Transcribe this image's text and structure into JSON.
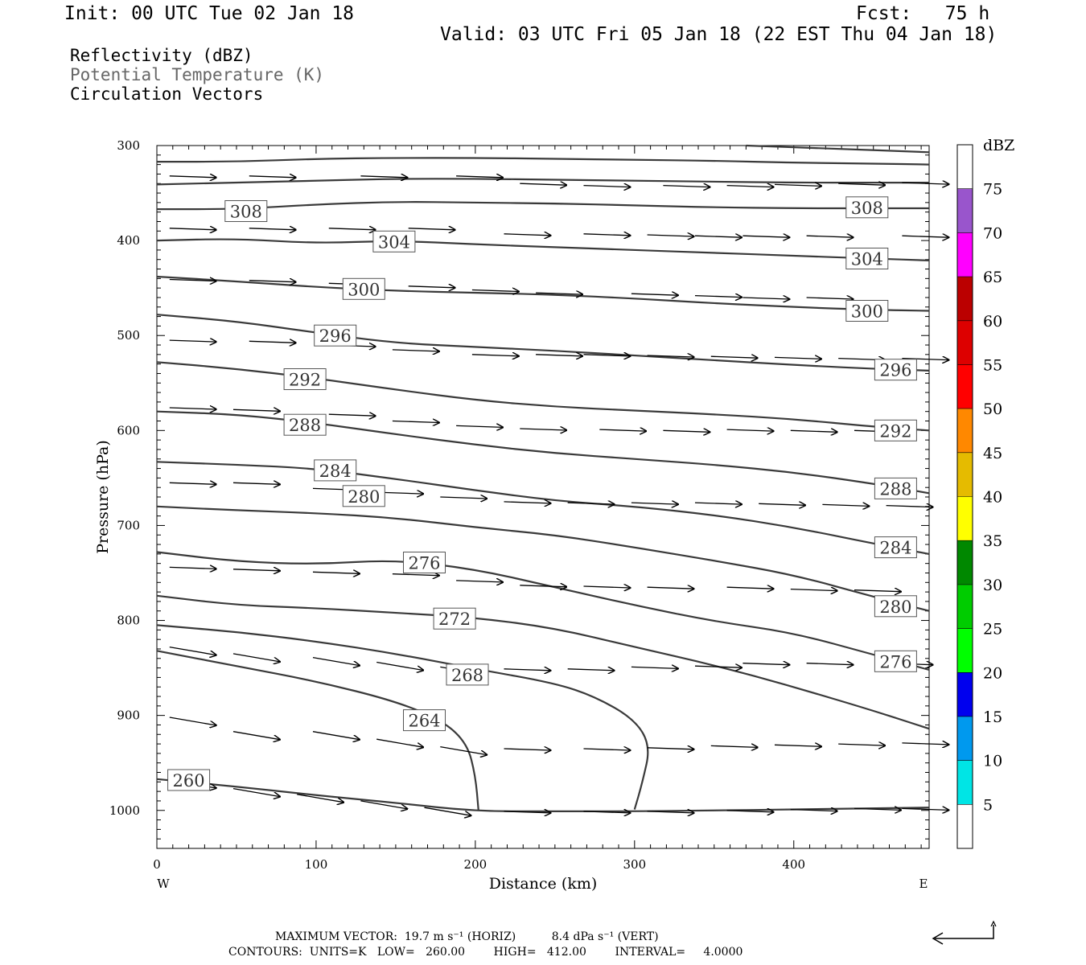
{
  "header": {
    "init": "Init: 00 UTC Tue 02 Jan 18",
    "fcst": "Fcst:   75 h",
    "valid": "Valid: 03 UTC Fri 05 Jan 18 (22 EST Thu 04 Jan 18)"
  },
  "legend": {
    "line1": "Reflectivity (dBZ)",
    "line2": "Potential Temperature (K)",
    "line3": "Circulation Vectors"
  },
  "footer": {
    "max_vector": "MAXIMUM VECTOR:  19.7 m s⁻¹ (HORIZ)          8.4 dPa s⁻¹ (VERT)",
    "contours": "CONTOURS:  UNITS=K   LOW=   260.00        HIGH=   412.00        INTERVAL=     4.0000"
  },
  "colors": {
    "contour": "#3a3a3a",
    "legend_secondary": "#666666"
  },
  "chart_data": {
    "type": "cross-section",
    "xlabel": "Distance (km)",
    "ylabel": "Pressure (hPa)",
    "xlim": [
      0,
      485
    ],
    "ylim": [
      1040,
      300
    ],
    "x_ticks": [
      0,
      100,
      200,
      300,
      400
    ],
    "y_ticks": [
      300,
      400,
      500,
      600,
      700,
      800,
      900,
      1000
    ],
    "x_end_labels": {
      "left": "W",
      "right": "E"
    },
    "colorbar": {
      "title": "dBZ",
      "levels": [
        5,
        10,
        15,
        20,
        25,
        30,
        35,
        40,
        45,
        50,
        55,
        60,
        65,
        70,
        75
      ],
      "colors": [
        "#ffffff",
        "#00e5e5",
        "#0099ee",
        "#0000ee",
        "#00ff00",
        "#00cc00",
        "#008800",
        "#ffff00",
        "#e5bb00",
        "#ff8800",
        "#ff0000",
        "#dd0000",
        "#bb0000",
        "#ff00ff",
        "#9955cc",
        "#ffffff"
      ]
    },
    "contours": [
      {
        "value": 260,
        "labels": [
          [
            20,
            968
          ]
        ],
        "points": [
          [
            0,
            967
          ],
          [
            50,
            975
          ],
          [
            100,
            984
          ],
          [
            150,
            992
          ],
          [
            200,
            1001
          ],
          [
            250,
            1001
          ],
          [
            300,
            1001
          ],
          [
            350,
            1000
          ],
          [
            400,
            999
          ],
          [
            485,
            997
          ]
        ]
      },
      {
        "value": 264,
        "labels": [
          [
            168,
            905
          ]
        ],
        "points": [
          [
            0,
            832
          ],
          [
            50,
            848
          ],
          [
            100,
            864
          ],
          [
            150,
            885
          ],
          [
            180,
            906
          ],
          [
            195,
            930
          ],
          [
            200,
            963
          ],
          [
            202,
            1000
          ]
        ]
      },
      {
        "value": 268,
        "labels": [
          [
            195,
            857
          ]
        ],
        "points": [
          [
            0,
            805
          ],
          [
            50,
            812
          ],
          [
            100,
            822
          ],
          [
            150,
            835
          ],
          [
            200,
            851
          ],
          [
            250,
            866
          ],
          [
            275,
            880
          ],
          [
            300,
            904
          ],
          [
            310,
            932
          ],
          [
            305,
            970
          ],
          [
            300,
            999
          ]
        ]
      },
      {
        "value": 272,
        "labels": [
          [
            187,
            798
          ]
        ],
        "points": [
          [
            0,
            774
          ],
          [
            50,
            784
          ],
          [
            100,
            787
          ],
          [
            150,
            792
          ],
          [
            200,
            797
          ],
          [
            250,
            808
          ],
          [
            300,
            828
          ],
          [
            350,
            847
          ],
          [
            400,
            870
          ],
          [
            450,
            895
          ],
          [
            485,
            914
          ]
        ]
      },
      {
        "value": 276,
        "labels": [
          [
            168,
            739
          ],
          [
            464,
            843
          ]
        ],
        "points": [
          [
            0,
            728
          ],
          [
            50,
            738
          ],
          [
            100,
            741
          ],
          [
            150,
            736
          ],
          [
            200,
            746
          ],
          [
            250,
            765
          ],
          [
            300,
            784
          ],
          [
            350,
            801
          ],
          [
            400,
            813
          ],
          [
            450,
            836
          ],
          [
            485,
            852
          ]
        ]
      },
      {
        "value": 280,
        "labels": [
          [
            130,
            669
          ],
          [
            464,
            785
          ]
        ],
        "points": [
          [
            0,
            680
          ],
          [
            50,
            684
          ],
          [
            100,
            687
          ],
          [
            150,
            692
          ],
          [
            200,
            702
          ],
          [
            250,
            710
          ],
          [
            300,
            723
          ],
          [
            350,
            737
          ],
          [
            400,
            752
          ],
          [
            450,
            775
          ],
          [
            485,
            790
          ]
        ]
      },
      {
        "value": 284,
        "labels": [
          [
            112,
            642
          ],
          [
            464,
            723
          ]
        ],
        "points": [
          [
            0,
            633
          ],
          [
            50,
            636
          ],
          [
            100,
            640
          ],
          [
            150,
            651
          ],
          [
            200,
            663
          ],
          [
            250,
            674
          ],
          [
            300,
            680
          ],
          [
            350,
            689
          ],
          [
            400,
            702
          ],
          [
            450,
            719
          ],
          [
            485,
            730
          ]
        ]
      },
      {
        "value": 288,
        "labels": [
          [
            93,
            594
          ],
          [
            464,
            661
          ]
        ],
        "points": [
          [
            0,
            580
          ],
          [
            50,
            583
          ],
          [
            100,
            592
          ],
          [
            150,
            604
          ],
          [
            200,
            615
          ],
          [
            250,
            624
          ],
          [
            300,
            630
          ],
          [
            350,
            636
          ],
          [
            400,
            644
          ],
          [
            450,
            656
          ],
          [
            485,
            666
          ]
        ]
      },
      {
        "value": 292,
        "labels": [
          [
            93,
            546
          ],
          [
            464,
            600
          ]
        ],
        "points": [
          [
            0,
            528
          ],
          [
            50,
            535
          ],
          [
            100,
            545
          ],
          [
            150,
            557
          ],
          [
            200,
            568
          ],
          [
            250,
            575
          ],
          [
            300,
            579
          ],
          [
            350,
            583
          ],
          [
            400,
            588
          ],
          [
            450,
            596
          ],
          [
            485,
            600
          ]
        ]
      },
      {
        "value": 296,
        "labels": [
          [
            112,
            500
          ],
          [
            464,
            536
          ]
        ],
        "points": [
          [
            0,
            478
          ],
          [
            50,
            485
          ],
          [
            100,
            497
          ],
          [
            150,
            508
          ],
          [
            200,
            512
          ],
          [
            250,
            516
          ],
          [
            300,
            521
          ],
          [
            350,
            526
          ],
          [
            400,
            531
          ],
          [
            450,
            535
          ],
          [
            485,
            537
          ]
        ]
      },
      {
        "value": 300,
        "labels": [
          [
            130,
            451
          ],
          [
            446,
            474
          ]
        ],
        "points": [
          [
            0,
            438
          ],
          [
            50,
            443
          ],
          [
            100,
            449
          ],
          [
            150,
            453
          ],
          [
            200,
            455
          ],
          [
            250,
            457
          ],
          [
            300,
            461
          ],
          [
            350,
            466
          ],
          [
            400,
            470
          ],
          [
            450,
            473
          ],
          [
            485,
            474
          ]
        ]
      },
      {
        "value": 304,
        "labels": [
          [
            149,
            401
          ],
          [
            446,
            419
          ]
        ],
        "points": [
          [
            0,
            400
          ],
          [
            50,
            398
          ],
          [
            100,
            403
          ],
          [
            150,
            400
          ],
          [
            200,
            404
          ],
          [
            250,
            407
          ],
          [
            300,
            410
          ],
          [
            350,
            413
          ],
          [
            400,
            416
          ],
          [
            450,
            419
          ],
          [
            485,
            421
          ]
        ]
      },
      {
        "value": 308,
        "labels": [
          [
            56,
            369
          ],
          [
            446,
            365
          ]
        ],
        "points": [
          [
            0,
            367
          ],
          [
            50,
            367
          ],
          [
            100,
            362
          ],
          [
            150,
            359
          ],
          [
            200,
            360
          ],
          [
            250,
            361
          ],
          [
            300,
            363
          ],
          [
            350,
            365
          ],
          [
            400,
            366
          ],
          [
            450,
            366
          ],
          [
            485,
            366
          ]
        ]
      },
      {
        "value": 312,
        "labels": [],
        "points": [
          [
            0,
            341
          ],
          [
            50,
            339
          ],
          [
            100,
            337
          ],
          [
            150,
            335
          ],
          [
            200,
            335
          ],
          [
            250,
            336
          ],
          [
            300,
            337
          ],
          [
            350,
            338
          ],
          [
            400,
            339
          ],
          [
            450,
            339
          ],
          [
            485,
            339
          ]
        ]
      },
      {
        "value": 316,
        "labels": [],
        "points": [
          [
            0,
            317
          ],
          [
            50,
            317
          ],
          [
            100,
            314
          ],
          [
            150,
            313
          ],
          [
            200,
            313
          ],
          [
            250,
            314
          ],
          [
            300,
            315
          ],
          [
            350,
            316
          ],
          [
            400,
            318
          ],
          [
            450,
            319
          ],
          [
            485,
            320
          ]
        ]
      },
      {
        "value": 320,
        "labels": [],
        "points": [
          [
            370,
            300
          ],
          [
            420,
            303
          ],
          [
            485,
            307
          ]
        ]
      }
    ]
  }
}
